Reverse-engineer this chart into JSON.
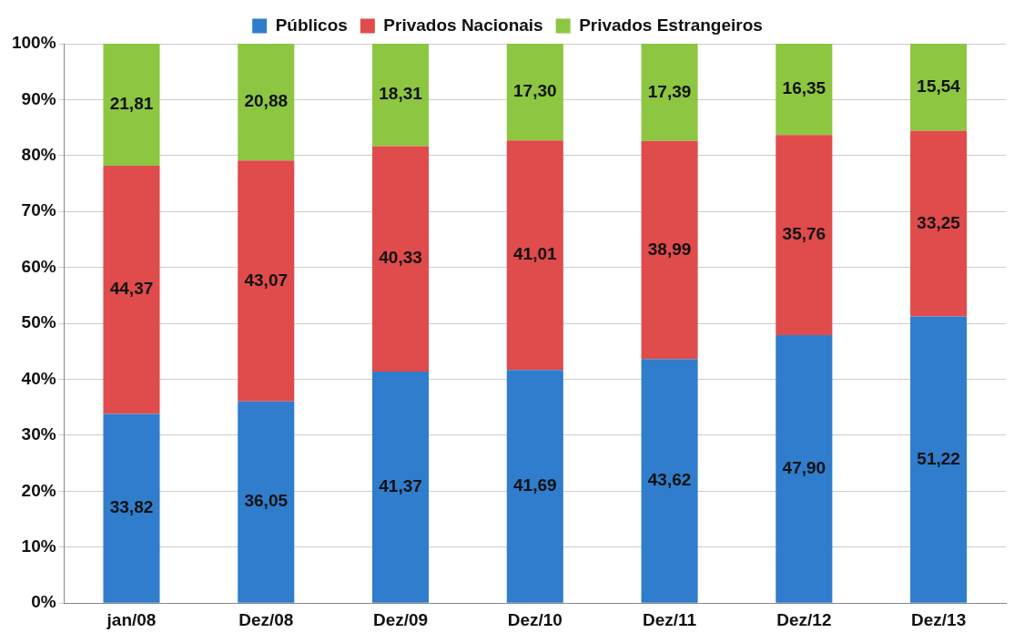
{
  "chart_data": {
    "type": "bar",
    "stacked": true,
    "categories": [
      "jan/08",
      "Dez/08",
      "Dez/09",
      "Dez/10",
      "Dez/11",
      "Dez/12",
      "Dez/13"
    ],
    "series": [
      {
        "name": "Públicos",
        "color": "#2f7dcc",
        "values": [
          33.82,
          36.05,
          41.37,
          41.69,
          43.62,
          47.9,
          51.22
        ],
        "value_labels": [
          "33,82",
          "36,05",
          "41,37",
          "41,69",
          "43,62",
          "47,90",
          "51,22"
        ]
      },
      {
        "name": "Privados Nacionais",
        "color": "#e04b4b",
        "values": [
          44.37,
          43.07,
          40.33,
          41.01,
          38.99,
          35.76,
          33.25
        ],
        "value_labels": [
          "44,37",
          "43,07",
          "40,33",
          "41,01",
          "38,99",
          "35,76",
          "33,25"
        ]
      },
      {
        "name": "Privados Estrangeiros",
        "color": "#8dc640",
        "values": [
          21.81,
          20.88,
          18.31,
          17.3,
          17.39,
          16.35,
          15.54
        ],
        "value_labels": [
          "21,81",
          "20,88",
          "18,31",
          "17,30",
          "17,39",
          "16,35",
          "15,54"
        ]
      }
    ],
    "ylim": [
      0,
      100
    ],
    "yticks": [
      {
        "value": 0,
        "label": "0%"
      },
      {
        "value": 10,
        "label": "10%"
      },
      {
        "value": 20,
        "label": "20%"
      },
      {
        "value": 30,
        "label": "30%"
      },
      {
        "value": 40,
        "label": "40%"
      },
      {
        "value": 50,
        "label": "50%"
      },
      {
        "value": 60,
        "label": "60%"
      },
      {
        "value": 70,
        "label": "70%"
      },
      {
        "value": 80,
        "label": "80%"
      },
      {
        "value": 90,
        "label": "90%"
      },
      {
        "value": 100,
        "label": "100%"
      }
    ],
    "grid": "y",
    "legend": "top"
  }
}
